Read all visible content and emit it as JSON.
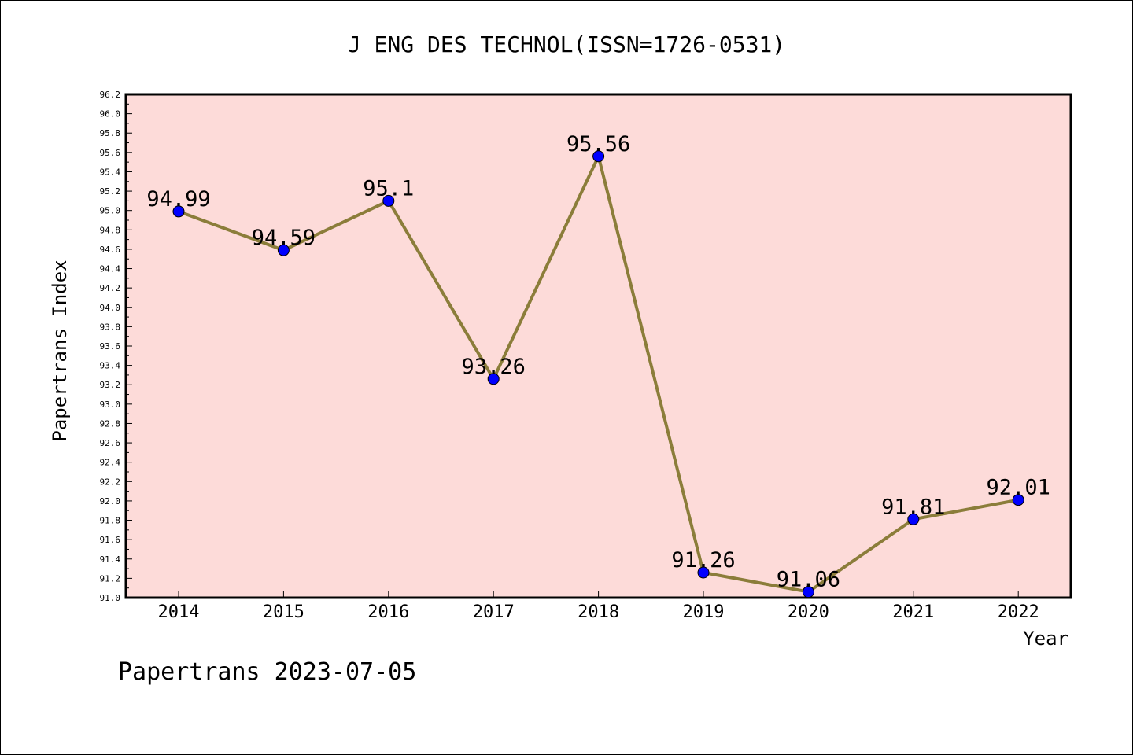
{
  "chart_data": {
    "type": "line",
    "title": "J ENG DES TECHNOL(ISSN=1726-0531)",
    "xlabel": "Year",
    "ylabel": "Papertrans Index",
    "x": [
      "2014",
      "2015",
      "2016",
      "2017",
      "2018",
      "2019",
      "2020",
      "2021",
      "2022"
    ],
    "series": [
      {
        "values": [
          94.99,
          94.59,
          95.1,
          93.26,
          95.56,
          91.26,
          91.06,
          91.81,
          92.01
        ],
        "labels": [
          "94.99",
          "94.59",
          "95.1",
          "93.26",
          "95.56",
          "91.26",
          "91.06",
          "91.81",
          "92.01"
        ]
      }
    ],
    "ylim": [
      91.0,
      96.2
    ],
    "yticks": [
      "91.0",
      "91.2",
      "91.4",
      "91.6",
      "91.8",
      "92.0",
      "92.2",
      "92.4",
      "92.6",
      "92.8",
      "93.0",
      "93.2",
      "93.4",
      "93.6",
      "93.8",
      "94.0",
      "94.2",
      "94.4",
      "94.6",
      "94.8",
      "95.0",
      "95.2",
      "95.4",
      "95.6",
      "95.8",
      "96.0",
      "96.2"
    ],
    "grid": false,
    "colors": {
      "plot_background": "#fddbd9",
      "line": "#8b7d3a",
      "marker": "#0000ff"
    }
  },
  "footer": "Papertrans 2023-07-05"
}
